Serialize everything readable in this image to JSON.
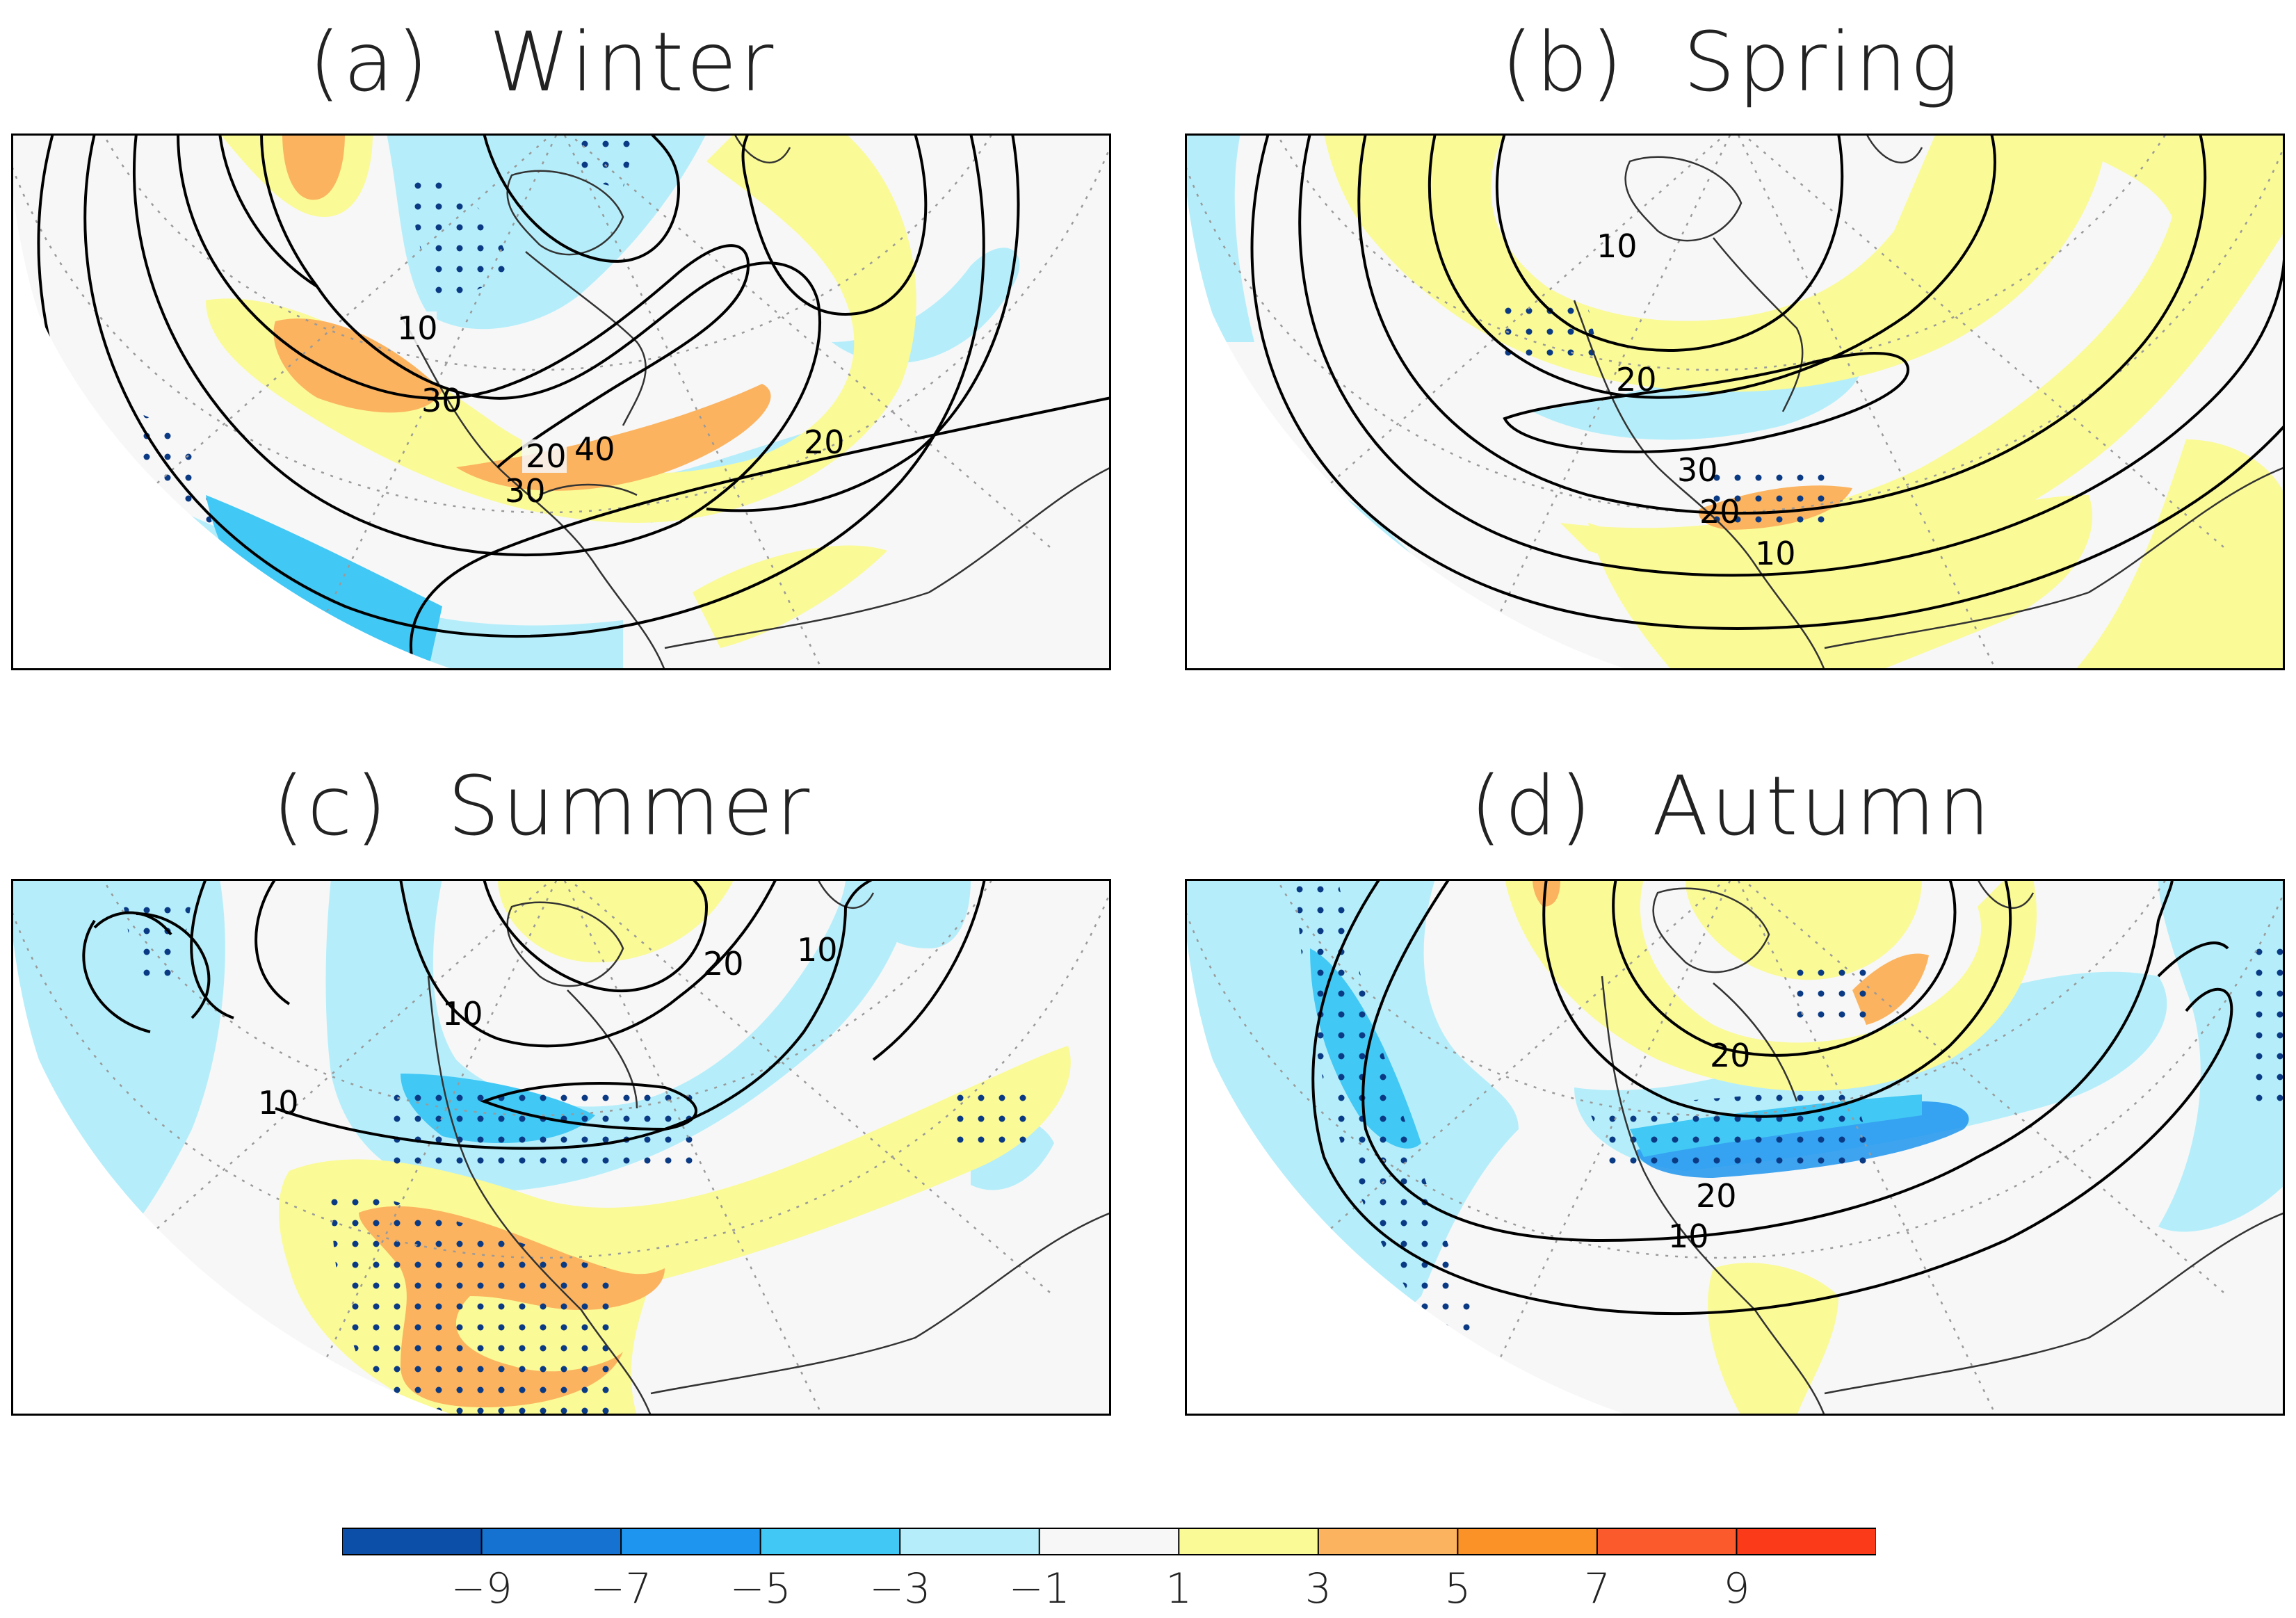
{
  "panels": [
    {
      "id": "a",
      "title": "(a)  Winter",
      "contour_labels": [
        "10",
        "20",
        "30",
        "40",
        "30",
        "20"
      ]
    },
    {
      "id": "b",
      "title": "(b)  Spring",
      "contour_labels": [
        "10",
        "20",
        "30",
        "20",
        "10"
      ]
    },
    {
      "id": "c",
      "title": "(c)  Summer",
      "contour_labels": [
        "20",
        "10",
        "10",
        "10"
      ]
    },
    {
      "id": "d",
      "title": "(d)  Autumn",
      "contour_labels": [
        "20",
        "20",
        "10"
      ]
    }
  ],
  "colorbar": {
    "tick_labels": [
      "−9",
      "−7",
      "−5",
      "−3",
      "−1",
      "1",
      "3",
      "5",
      "7",
      "9"
    ],
    "colors": [
      "#0b4fa8",
      "#1672d1",
      "#1e95ee",
      "#42c8f5",
      "#b5eefa",
      "#f7f7f7",
      "#fafa96",
      "#fbb35f",
      "#fb9227",
      "#fb5a2d",
      "#fb3a1a"
    ]
  },
  "legend_colors": {
    "strong_negative": "#1e95ee",
    "moderate_negative": "#42c8f5",
    "weak_negative": "#b5eefa",
    "neutral": "#f7f7f7",
    "weak_positive": "#fafa96",
    "moderate_positive": "#fbb35f",
    "stipple": "#0b3a85"
  }
}
